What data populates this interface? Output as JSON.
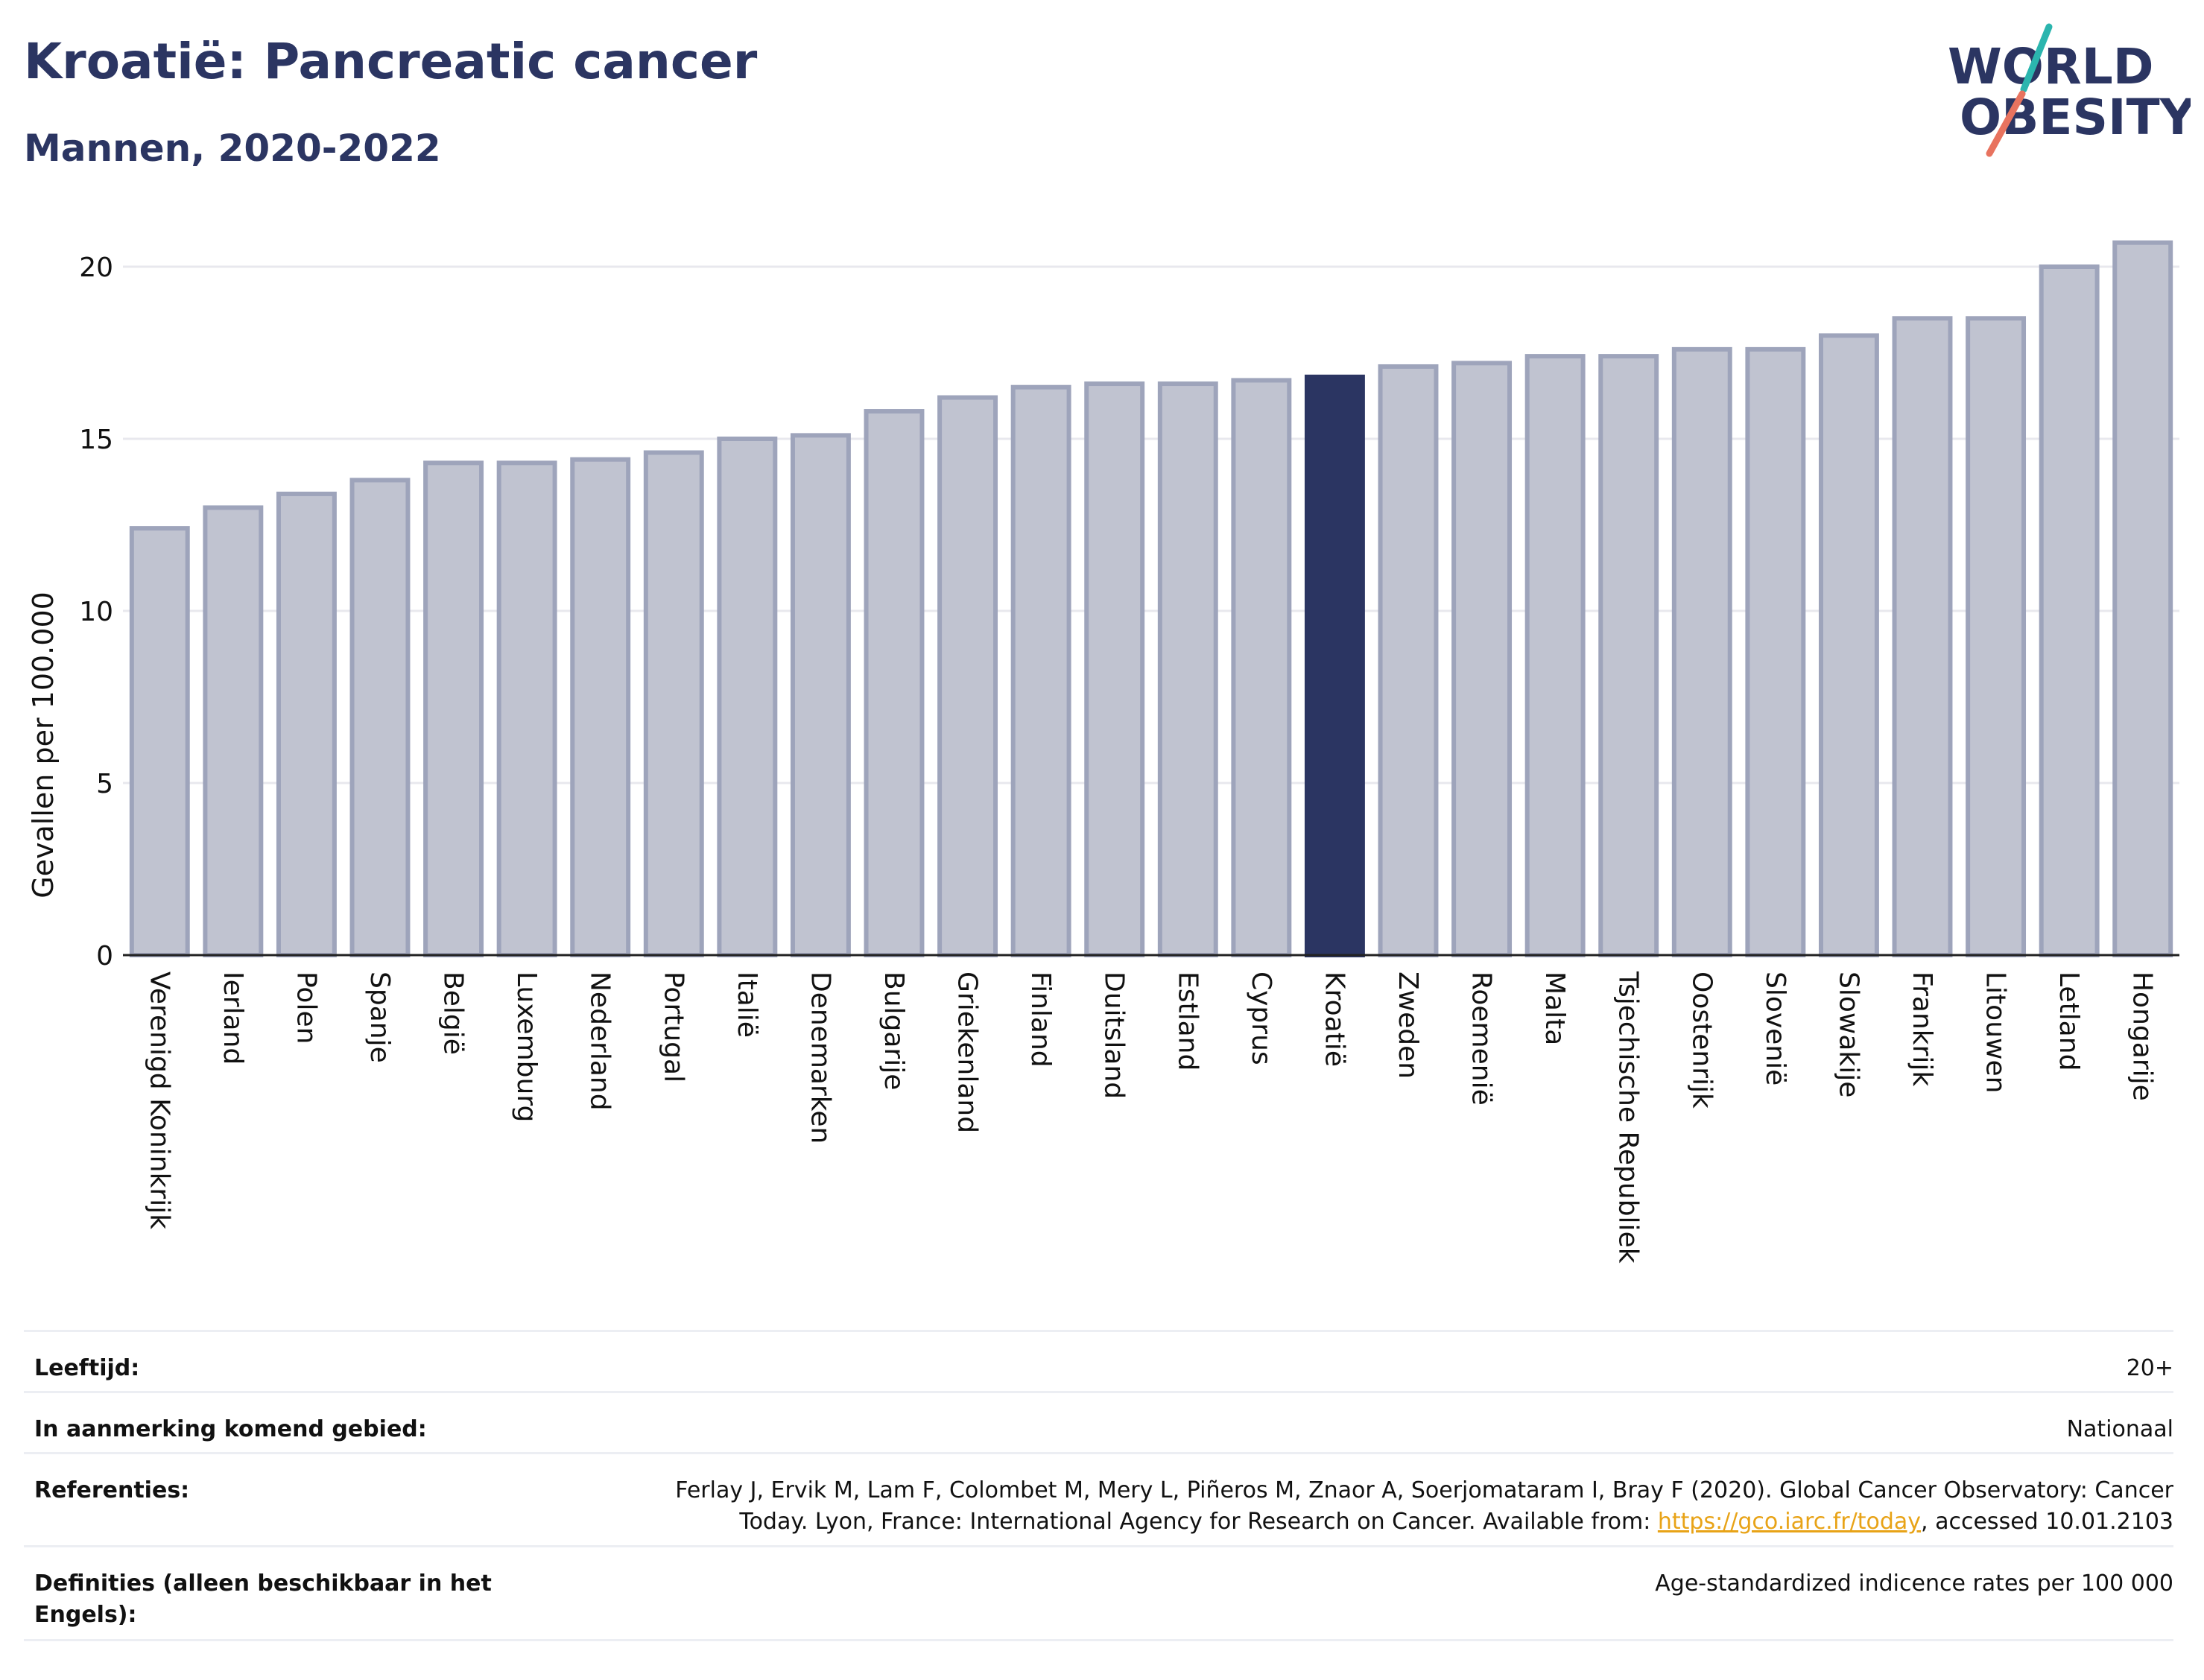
{
  "header": {
    "title": "Kroatië: Pancreatic cancer",
    "subtitle": "Mannen, 2020-2022"
  },
  "logo": {
    "line1": "WORLD",
    "line2": "OBESITY"
  },
  "colors": {
    "bar": "#c0c3d0",
    "bar_border": "#9ea4bb",
    "highlight": "#2b3562",
    "title": "#2b3562",
    "grid": "#e8e8ee",
    "logo_teal": "#2bb5ae",
    "logo_coral": "#e8735f"
  },
  "chart_data": {
    "type": "bar",
    "title": "Kroatië: Pancreatic cancer",
    "subtitle": "Mannen, 2020-2022",
    "ylabel": "Gevallen per 100.000",
    "xlabel": "",
    "ylim": [
      0,
      21.5
    ],
    "yticks": [
      0,
      5,
      10,
      15,
      20
    ],
    "grid": true,
    "highlight": "Kroatië",
    "categories": [
      "Verenigd Koninkrijk",
      "Ierland",
      "Polen",
      "Spanje",
      "België",
      "Luxemburg",
      "Nederland",
      "Portugal",
      "Italië",
      "Denemarken",
      "Bulgarije",
      "Griekenland",
      "Finland",
      "Duitsland",
      "Estland",
      "Cyprus",
      "Kroatië",
      "Zweden",
      "Roemenië",
      "Malta",
      "Tsjechische Republiek",
      "Oostenrijk",
      "Slovenië",
      "Slowakije",
      "Frankrijk",
      "Litouwen",
      "Letland",
      "Hongarije"
    ],
    "values": [
      12.4,
      13.0,
      13.4,
      13.8,
      14.3,
      14.3,
      14.4,
      14.6,
      15.0,
      15.1,
      15.8,
      16.2,
      16.5,
      16.6,
      16.6,
      16.7,
      16.8,
      17.1,
      17.2,
      17.4,
      17.4,
      17.6,
      17.6,
      18.0,
      18.5,
      18.5,
      20.0,
      20.7
    ]
  },
  "meta": [
    {
      "key": "Leeftijd:",
      "value": "20+"
    },
    {
      "key": "In aanmerking komend gebied:",
      "value": "Nationaal"
    },
    {
      "key": "Referenties:",
      "value_before": "Ferlay J, Ervik M, Lam F, Colombet M, Mery L, Piñeros M, Znaor A, Soerjomataram I, Bray F (2020). Global Cancer Observatory: Cancer Today. Lyon, France: International Agency for Research on Cancer. Available from: ",
      "link": "https://gco.iarc.fr/today",
      "value_after": ", accessed 10.01.2103"
    },
    {
      "key": "Definities (alleen beschikbaar in het Engels):",
      "value": "Age-standardized indicence rates per 100 000"
    }
  ]
}
